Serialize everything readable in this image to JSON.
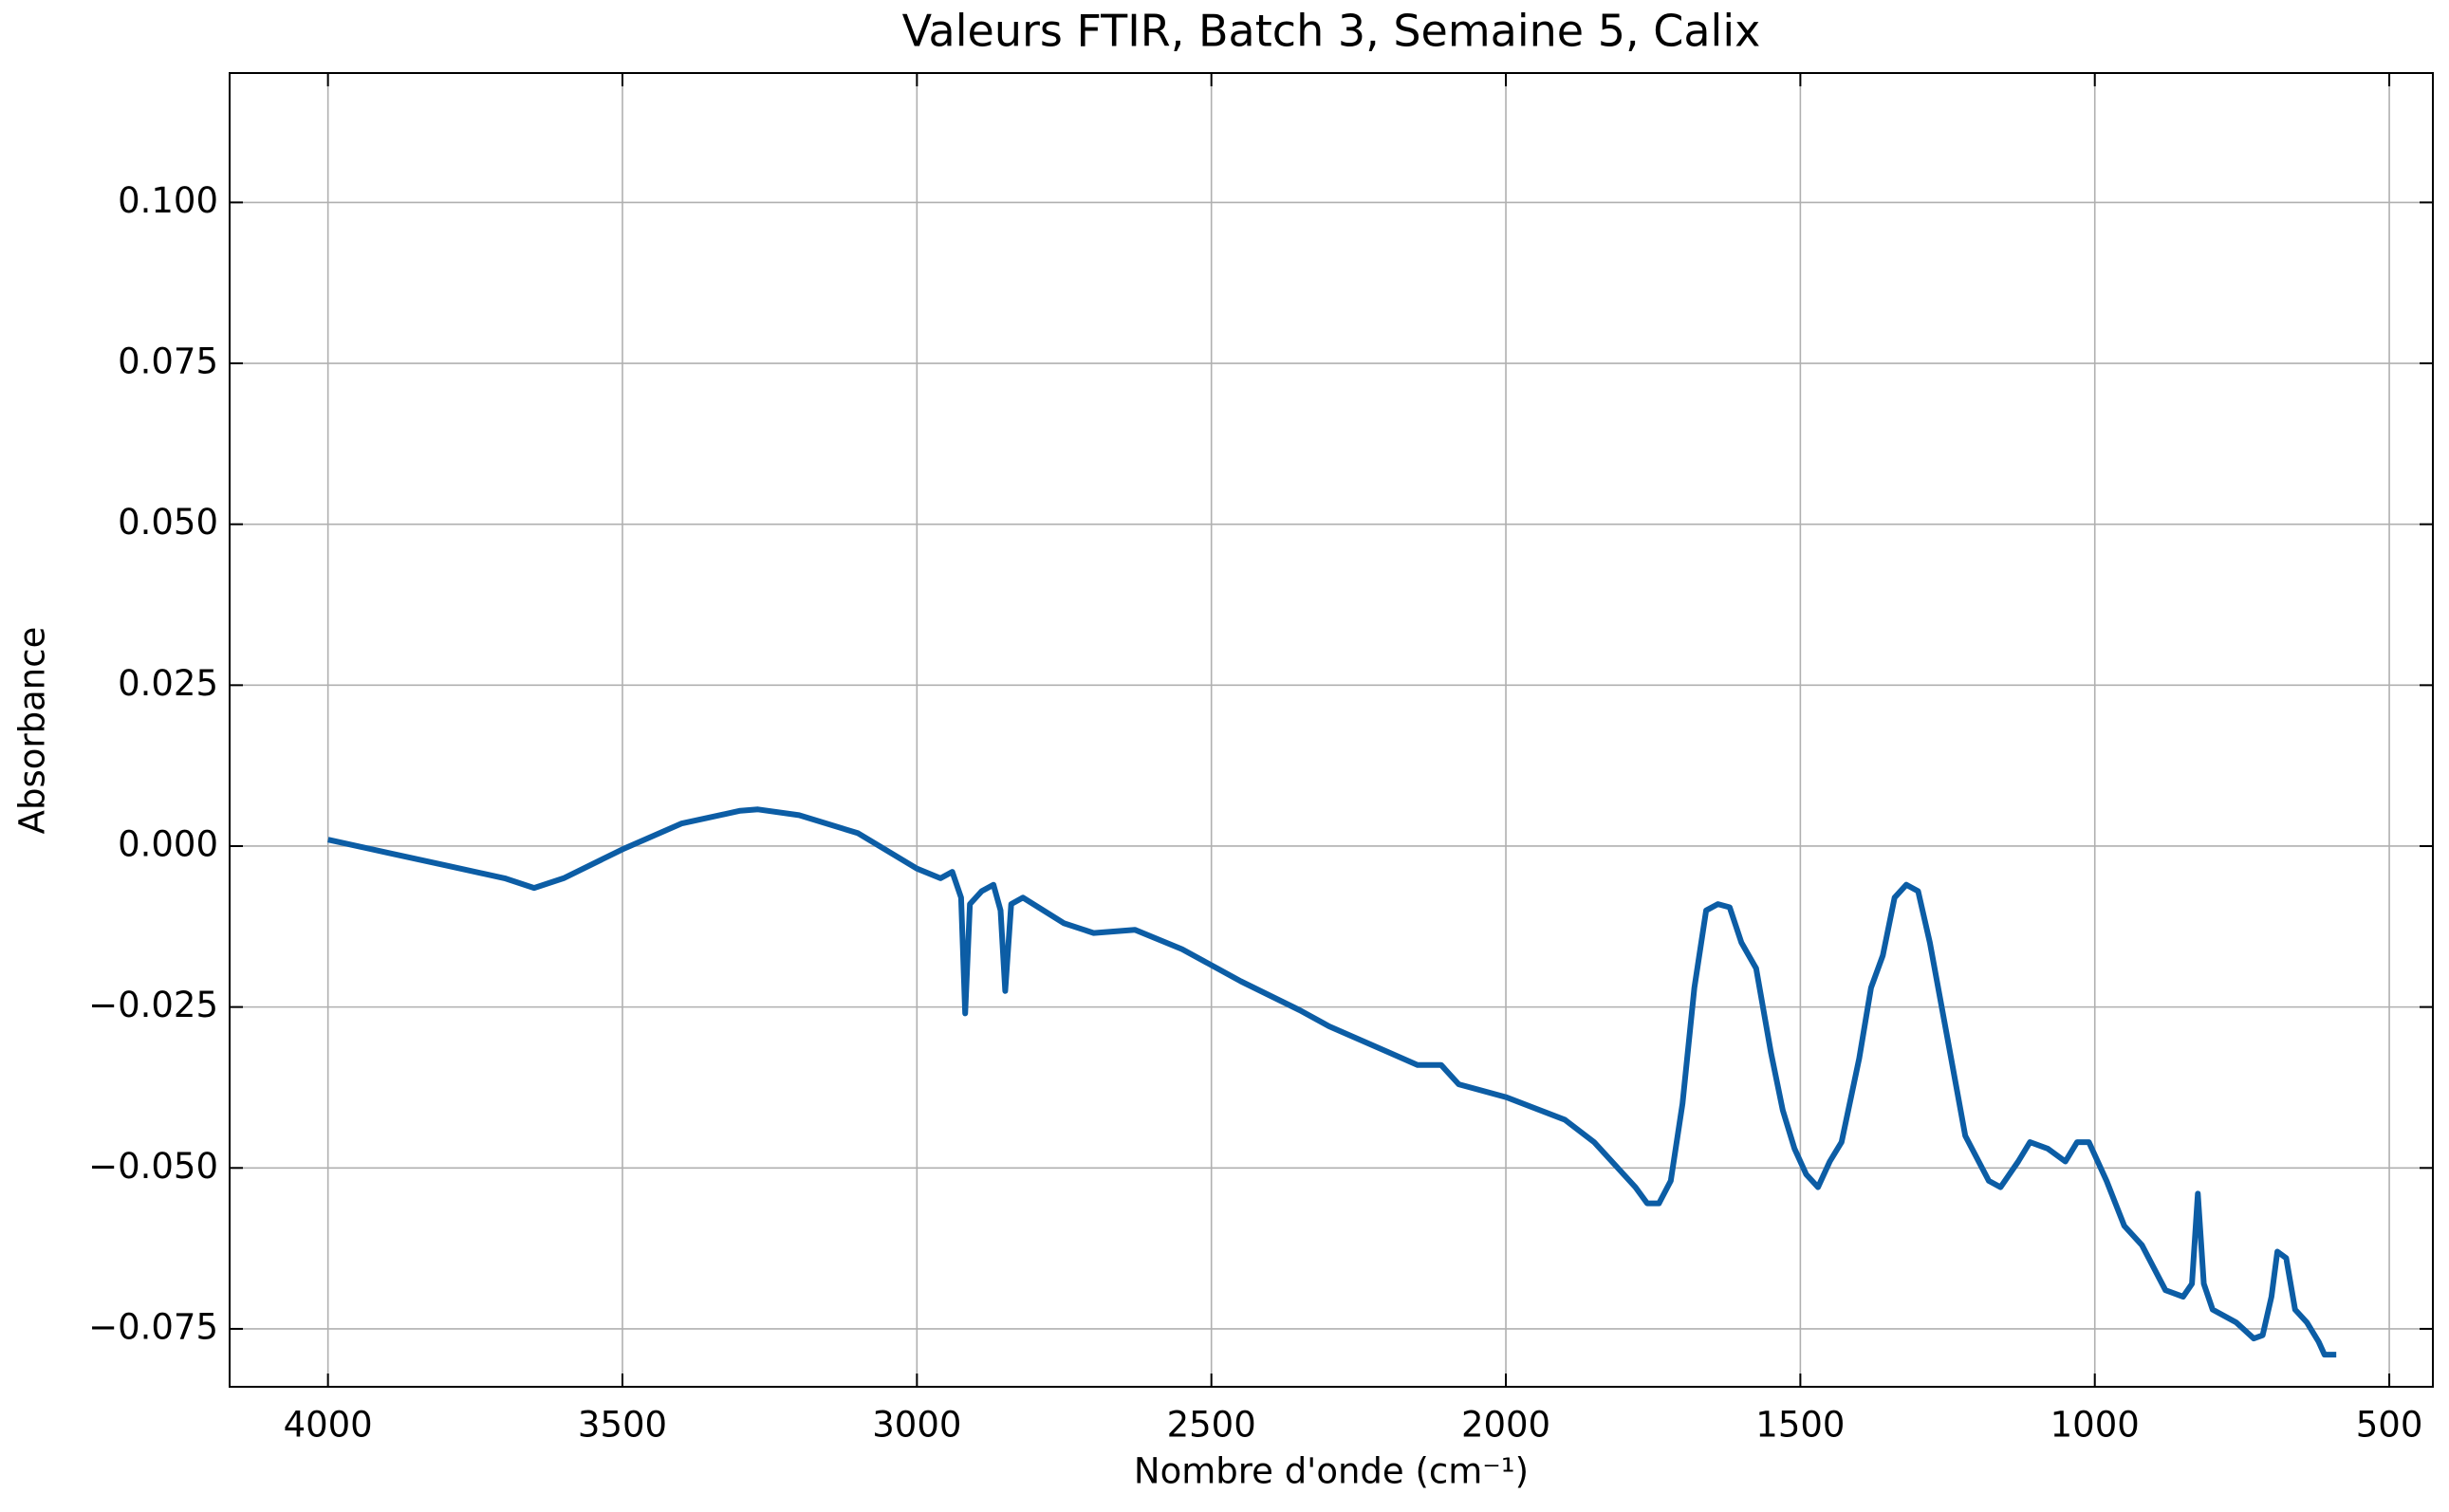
{
  "chart_data": {
    "type": "line",
    "title": "Valeurs FTIR, Batch 3, Semaine 5, Calix",
    "x_label": "Nombre d'onde (cm⁻¹)",
    "y_label": "Absorbance",
    "xlim": [
      4167,
      426
    ],
    "ylim": [
      -0.084,
      0.1201
    ],
    "xticks": [
      4000,
      3500,
      3000,
      2500,
      2000,
      1500,
      1000,
      500
    ],
    "yticks": [
      {
        "value": -0.075,
        "label": "−0.075"
      },
      {
        "value": -0.05,
        "label": "−0.050"
      },
      {
        "value": -0.025,
        "label": "−0.025"
      },
      {
        "value": 0,
        "label": "0.000"
      },
      {
        "value": 0.025,
        "label": "0.025"
      },
      {
        "value": 0.05,
        "label": "0.050"
      },
      {
        "value": 0.075,
        "label": "0.075"
      },
      {
        "value": 0.1,
        "label": "0.100"
      }
    ],
    "grid": true,
    "x": [
      4000,
      3900,
      3800,
      3700,
      3650,
      3600,
      3500,
      3400,
      3300,
      3270,
      3200,
      3100,
      3000,
      2960,
      2940,
      2925,
      2918,
      2910,
      2890,
      2870,
      2858,
      2850,
      2840,
      2820,
      2750,
      2700,
      2630,
      2550,
      2450,
      2350,
      2300,
      2200,
      2150,
      2110,
      2080,
      2000,
      1900,
      1850,
      1780,
      1760,
      1740,
      1720,
      1700,
      1680,
      1660,
      1640,
      1620,
      1600,
      1575,
      1550,
      1530,
      1510,
      1490,
      1470,
      1450,
      1430,
      1400,
      1380,
      1360,
      1340,
      1320,
      1300,
      1280,
      1250,
      1220,
      1180,
      1160,
      1130,
      1110,
      1080,
      1050,
      1030,
      1010,
      980,
      950,
      920,
      880,
      850,
      835,
      825,
      815,
      800,
      760,
      730,
      715,
      700,
      690,
      675,
      660,
      640,
      620,
      610,
      590
    ],
    "series": [
      {
        "color": "#0c5da5",
        "values": [
          0.001,
          -0.001,
          -0.003,
          -0.005,
          -0.0065,
          -0.005,
          -0.0005,
          0.0035,
          0.0055,
          0.0057,
          0.0048,
          0.002,
          -0.0035,
          -0.005,
          -0.004,
          -0.008,
          -0.026,
          -0.009,
          -0.007,
          -0.006,
          -0.01,
          -0.0225,
          -0.009,
          -0.008,
          -0.012,
          -0.0135,
          -0.013,
          -0.016,
          -0.021,
          -0.0255,
          -0.028,
          -0.032,
          -0.034,
          -0.034,
          -0.037,
          -0.039,
          -0.0425,
          -0.046,
          -0.053,
          -0.0555,
          -0.0555,
          -0.052,
          -0.04,
          -0.022,
          -0.01,
          -0.009,
          -0.0095,
          -0.015,
          -0.019,
          -0.032,
          -0.041,
          -0.047,
          -0.051,
          -0.053,
          -0.049,
          -0.046,
          -0.033,
          -0.022,
          -0.017,
          -0.008,
          -0.006,
          -0.007,
          -0.015,
          -0.03,
          -0.045,
          -0.052,
          -0.053,
          -0.049,
          -0.046,
          -0.047,
          -0.049,
          -0.046,
          -0.046,
          -0.052,
          -0.059,
          -0.062,
          -0.069,
          -0.07,
          -0.068,
          -0.054,
          -0.068,
          -0.072,
          -0.074,
          -0.0765,
          -0.076,
          -0.07,
          -0.063,
          -0.064,
          -0.072,
          -0.074,
          -0.077,
          -0.079,
          -0.079
        ]
      }
    ]
  }
}
